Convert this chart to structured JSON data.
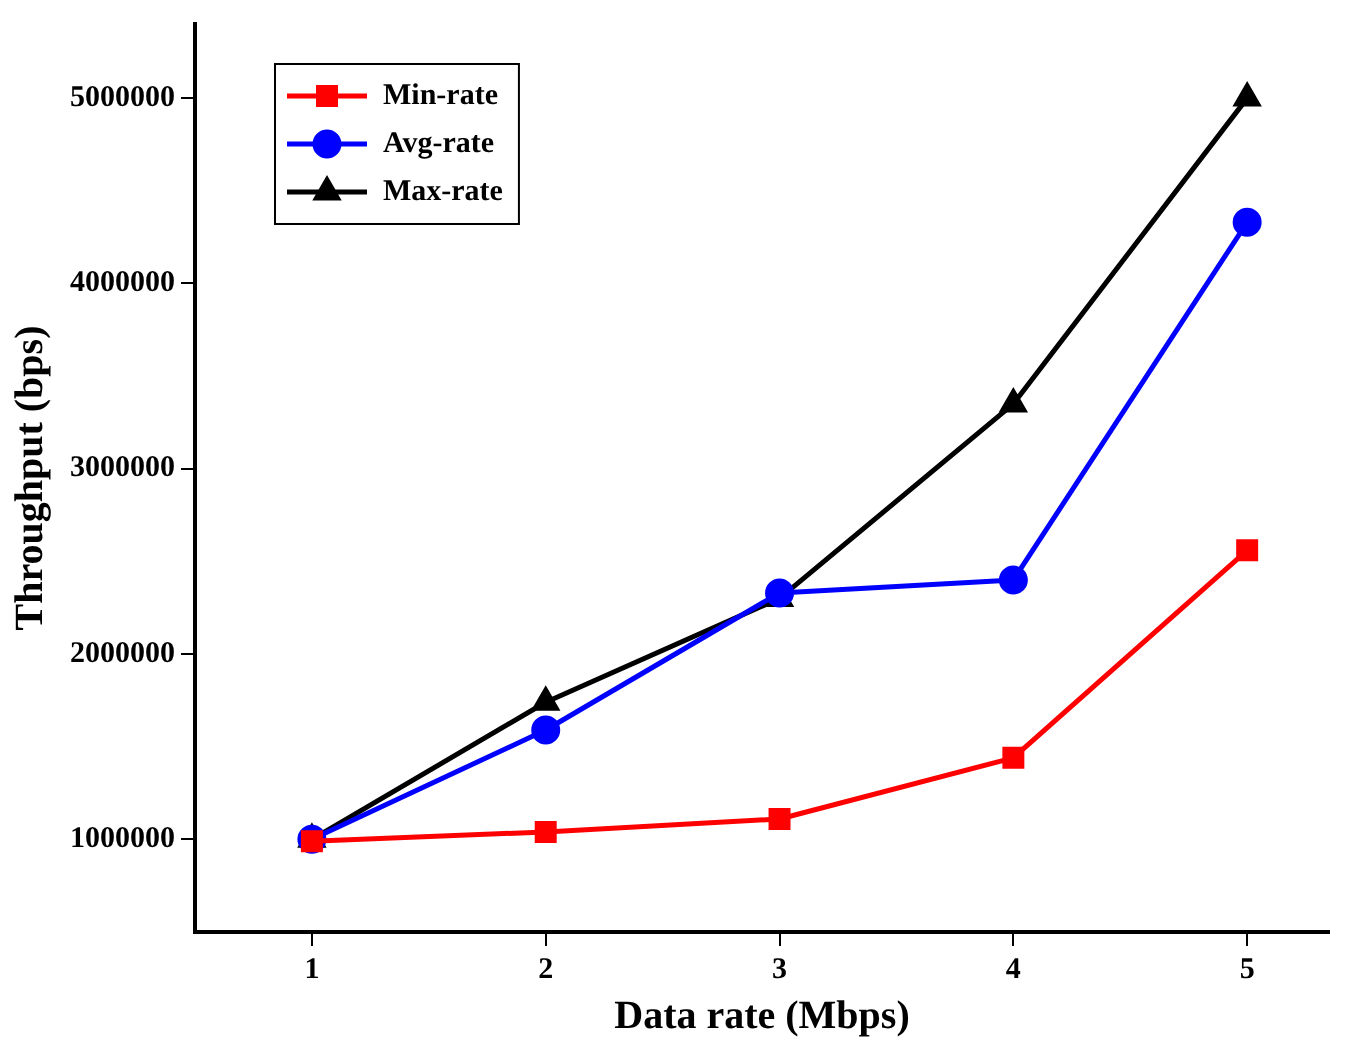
{
  "chart_data": {
    "type": "line",
    "xlabel": "Data rate (Mbps)",
    "ylabel": "Throughput (bps)",
    "x": [
      1,
      2,
      3,
      4,
      5
    ],
    "series": [
      {
        "name": "Min-rate",
        "color": "#ff0000",
        "marker": "square",
        "values": [
          990000,
          1040000,
          1110000,
          1440000,
          2560000
        ]
      },
      {
        "name": "Avg-rate",
        "color": "#0000ff",
        "marker": "circle",
        "values": [
          1000000,
          1590000,
          2330000,
          2400000,
          4330000
        ]
      },
      {
        "name": "Max-rate",
        "color": "#000000",
        "marker": "triangle",
        "values": [
          1000000,
          1740000,
          2300000,
          3350000,
          5000000
        ]
      }
    ],
    "xlim": [
      0.5,
      5.35
    ],
    "xticks": [
      1,
      2,
      3,
      4,
      5
    ],
    "ylim": [
      500000,
      5400000
    ],
    "yticks": [
      1000000,
      2000000,
      3000000,
      4000000,
      5000000
    ],
    "grid": false,
    "legend": "top left",
    "line_style": "solid"
  }
}
